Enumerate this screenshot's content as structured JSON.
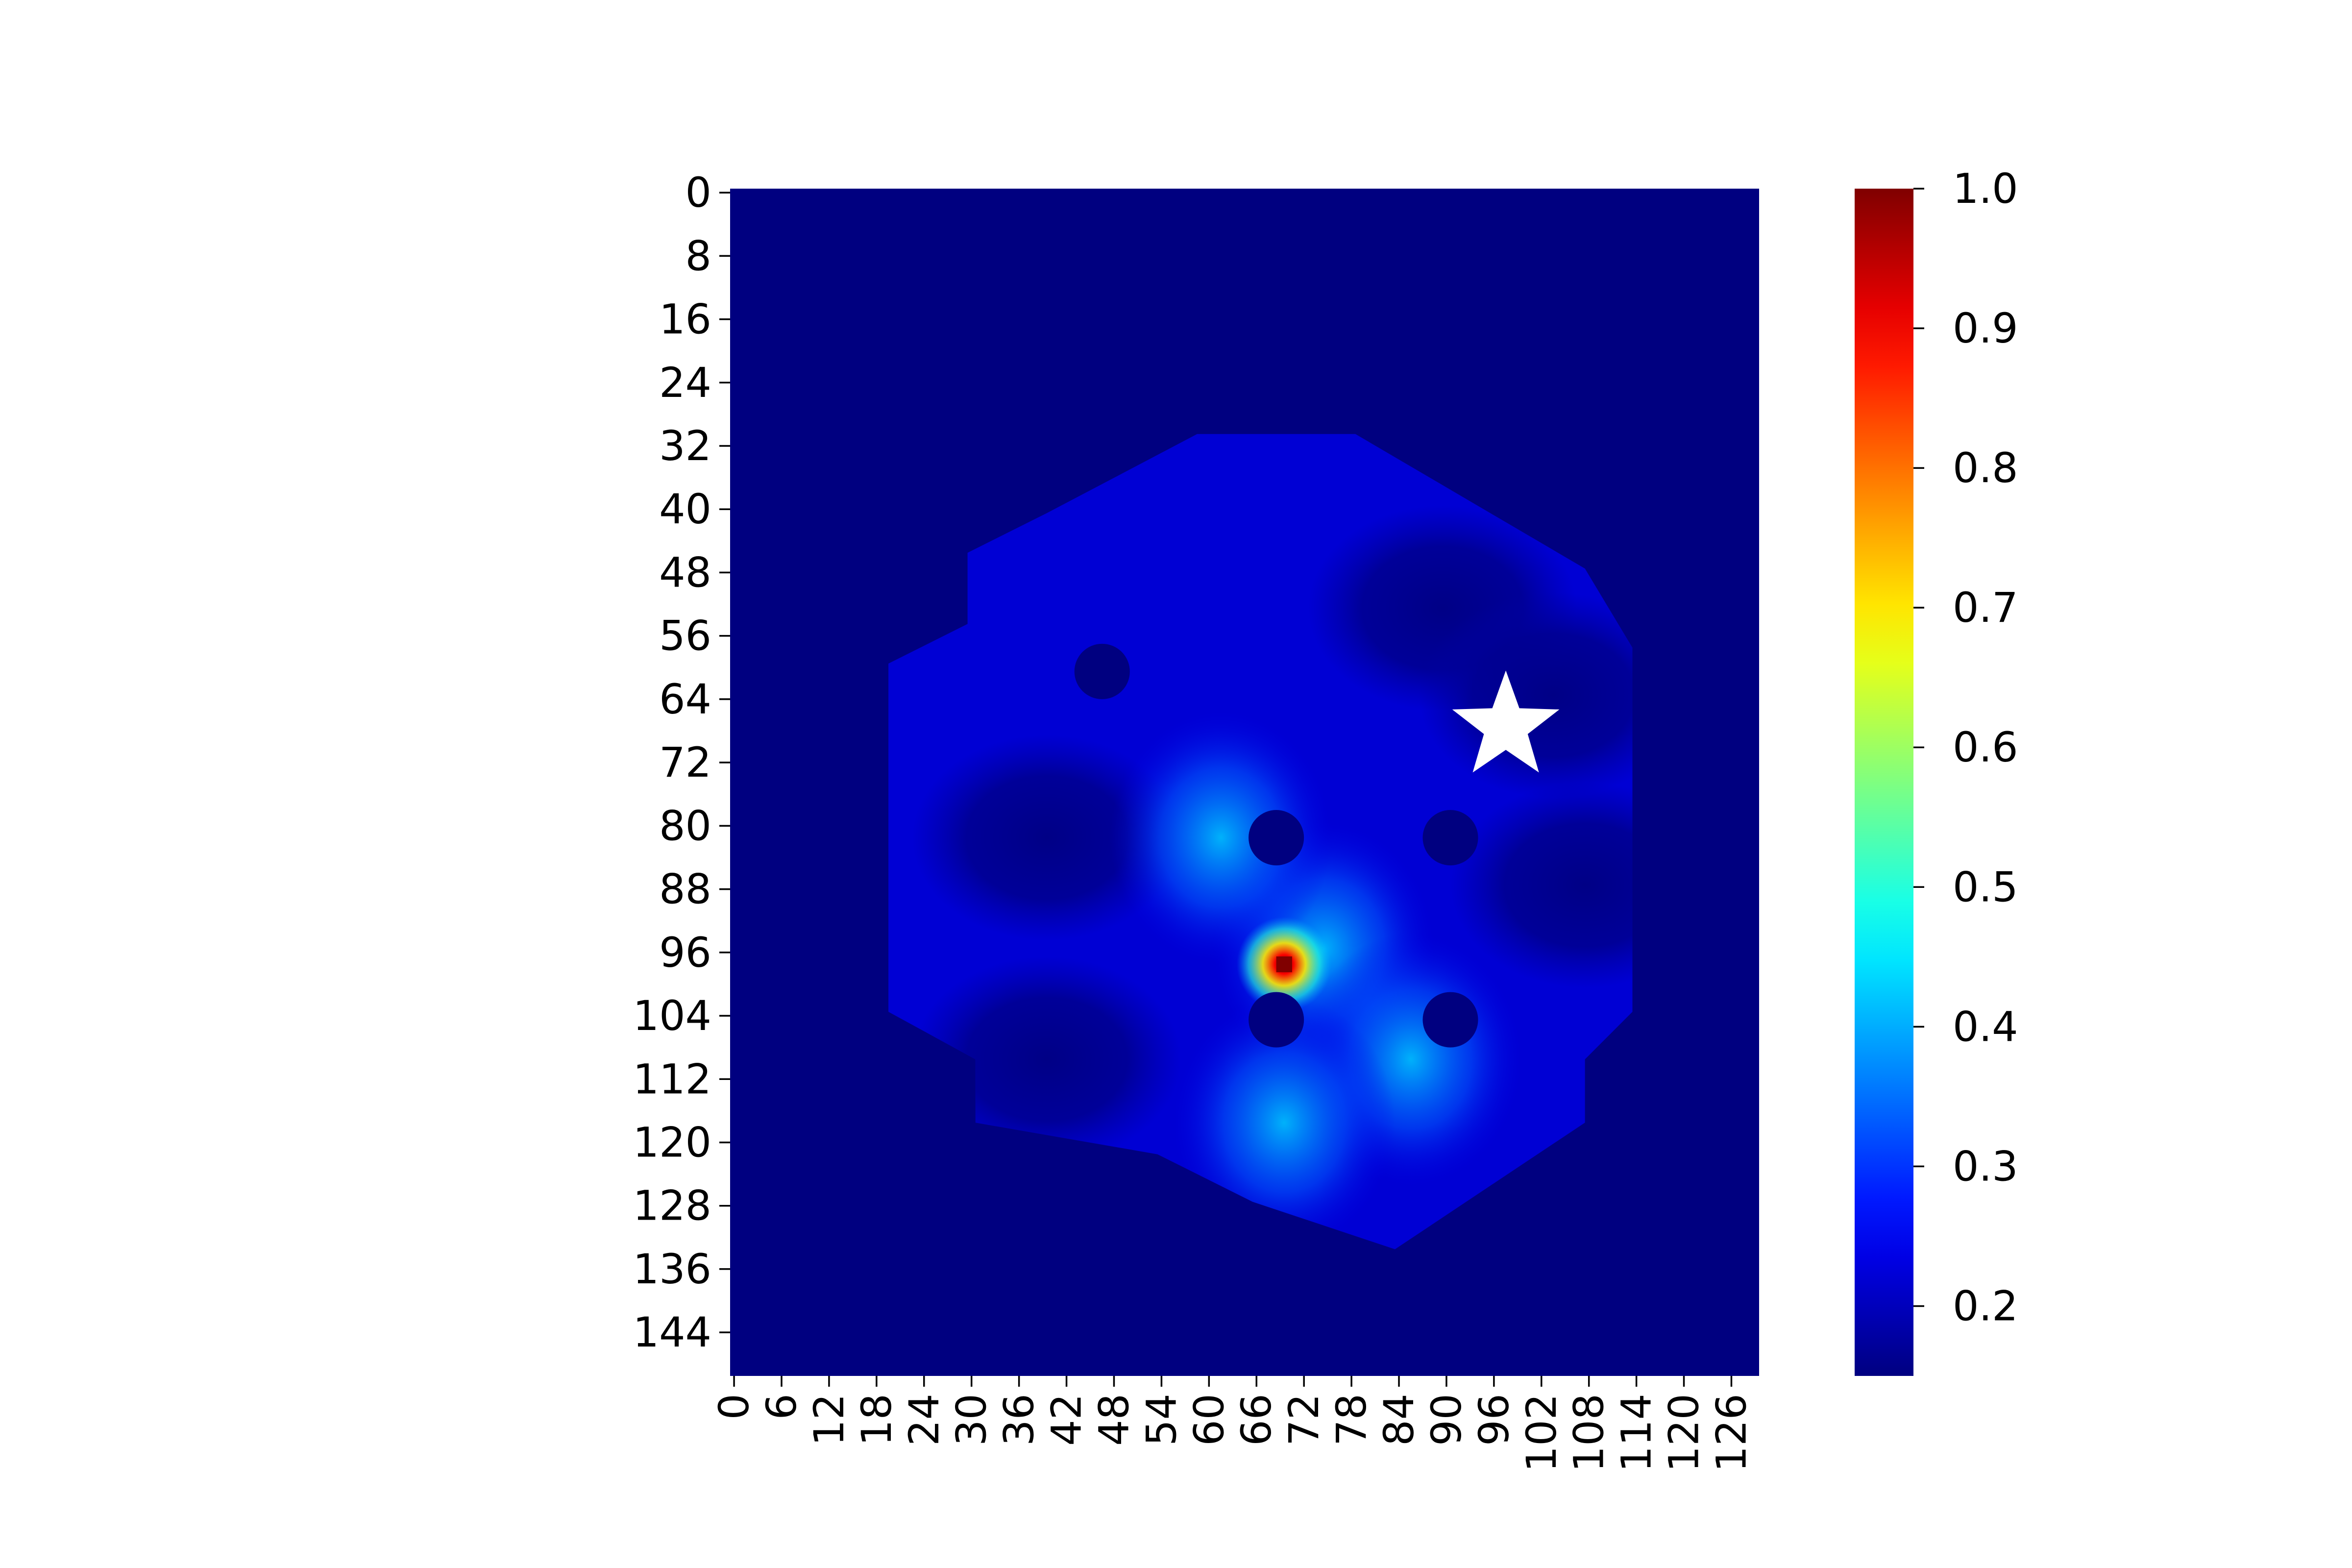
{
  "chart_data": {
    "type": "heatmap",
    "title": "",
    "xlabel": "",
    "ylabel": "",
    "colormap": "jet",
    "grid": false,
    "n_cols": 130,
    "n_rows": 150,
    "x_tick_labels": [
      "0",
      "6",
      "12",
      "18",
      "24",
      "30",
      "36",
      "42",
      "48",
      "54",
      "60",
      "66",
      "72",
      "78",
      "84",
      "90",
      "96",
      "102",
      "108",
      "114",
      "120",
      "126"
    ],
    "y_tick_labels": [
      "0",
      "8",
      "16",
      "24",
      "32",
      "40",
      "48",
      "56",
      "64",
      "72",
      "80",
      "88",
      "96",
      "104",
      "112",
      "120",
      "128",
      "136",
      "144"
    ],
    "value_range": [
      0.15,
      1.0
    ],
    "colorbar": {
      "position": "right",
      "ticks": [
        "0.2",
        "0.3",
        "0.4",
        "0.5",
        "0.6",
        "0.7",
        "0.8",
        "0.9",
        "1.0"
      ]
    },
    "background_value": 0.15,
    "arena": {
      "shape": "hexagon",
      "vertices_col_row": [
        [
          59,
          31
        ],
        [
          79,
          31
        ],
        [
          108,
          48
        ],
        [
          114,
          58
        ],
        [
          114,
          104
        ],
        [
          108,
          110
        ],
        [
          108,
          118
        ],
        [
          84,
          134
        ],
        [
          66,
          128
        ],
        [
          54,
          122
        ],
        [
          31,
          118
        ],
        [
          31,
          110
        ],
        [
          20,
          104
        ],
        [
          20,
          60
        ],
        [
          30,
          55
        ],
        [
          30,
          46
        ],
        [
          40,
          41
        ]
      ],
      "base_value": 0.22
    },
    "peak": {
      "col": 70,
      "row": 98,
      "value": 1.0
    },
    "high_band": [
      {
        "col": 75,
        "row": 96,
        "value": 0.46
      },
      {
        "col": 86,
        "row": 110,
        "value": 0.42
      },
      {
        "col": 70,
        "row": 118,
        "value": 0.34
      },
      {
        "col": 62,
        "row": 82,
        "value": 0.28
      }
    ],
    "low_zones": [
      {
        "col": 90,
        "row": 53,
        "value": 0.17
      },
      {
        "col": 104,
        "row": 64,
        "value": 0.18
      },
      {
        "col": 40,
        "row": 82,
        "value": 0.17
      },
      {
        "col": 40,
        "row": 110,
        "value": 0.17
      },
      {
        "col": 108,
        "row": 88,
        "value": 0.19
      }
    ],
    "obstacles": [
      {
        "col": 47,
        "row": 61,
        "radius": 3.5
      },
      {
        "col": 69,
        "row": 82,
        "radius": 3.5
      },
      {
        "col": 91,
        "row": 82,
        "radius": 3.5
      },
      {
        "col": 69,
        "row": 105,
        "radius": 3.5
      },
      {
        "col": 91,
        "row": 105,
        "radius": 3.5
      }
    ],
    "goal_marker": {
      "symbol": "star",
      "color": "#ffffff",
      "col": 98,
      "row": 68
    }
  }
}
